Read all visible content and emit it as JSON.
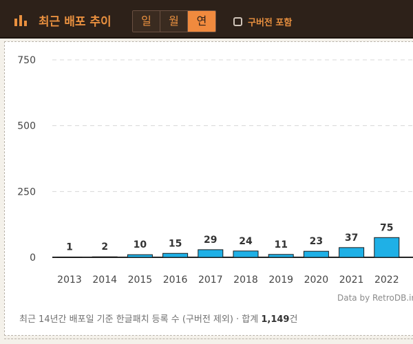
{
  "header": {
    "title": "최근 배포 추이",
    "tabs": [
      {
        "label": "일",
        "active": false
      },
      {
        "label": "월",
        "active": false
      },
      {
        "label": "연",
        "active": true
      }
    ],
    "checkbox_label": "구버전 포함",
    "checkbox_checked": false
  },
  "chart_data": {
    "type": "bar",
    "categories": [
      "2013",
      "2014",
      "2015",
      "2016",
      "2017",
      "2018",
      "2019",
      "2020",
      "2021",
      "2022"
    ],
    "values": [
      1,
      2,
      10,
      15,
      29,
      24,
      11,
      23,
      37,
      75
    ],
    "ylim": [
      0,
      750
    ],
    "yticks": [
      "0",
      "250",
      "500",
      "750"
    ],
    "grid": true,
    "bar_color": "#1fb0e6",
    "title": "",
    "xlabel": "",
    "ylabel": ""
  },
  "credit": "Data by RetroDB.ir",
  "footer": {
    "text": "최근 14년간 배포일 기준 한글패치 등록 수 (구버전 제외) · 합계 ",
    "total": "1,149",
    "suffix": "건"
  },
  "colors": {
    "header_bg": "#2d2119",
    "accent": "#e9903f",
    "active_tab": "#f08a3e"
  }
}
